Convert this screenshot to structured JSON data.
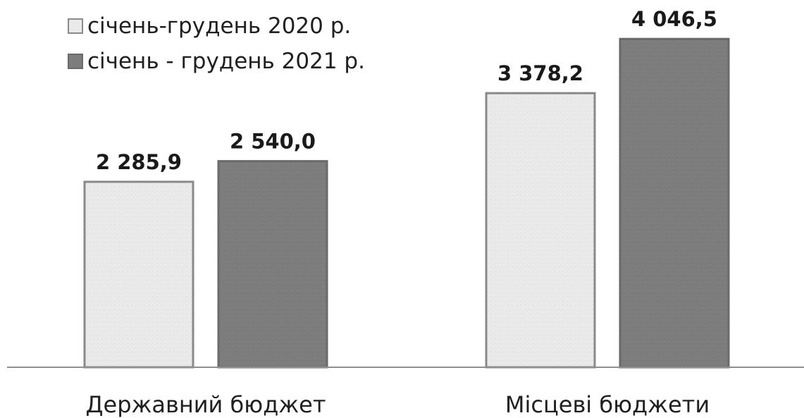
{
  "chart_data": {
    "type": "bar",
    "categories": [
      "Державний бюджет",
      "Місцеві бюджети"
    ],
    "series": [
      {
        "name": "січень-грудень 2020 р.",
        "values": [
          2285.9,
          3378.2
        ],
        "labels": [
          "2 285,9",
          "3 378,2"
        ],
        "color": "#eaeaea",
        "border": "#8a8a8a"
      },
      {
        "name": "січень - грудень 2021 р.",
        "values": [
          2540.0,
          4046.5
        ],
        "labels": [
          "2 540,0",
          "4 046,5"
        ],
        "color": "#7d7d7d",
        "border": "#6a6a6a"
      }
    ],
    "legend_position": "top-left",
    "grid": false,
    "ylim": [
      0,
      4500
    ]
  }
}
